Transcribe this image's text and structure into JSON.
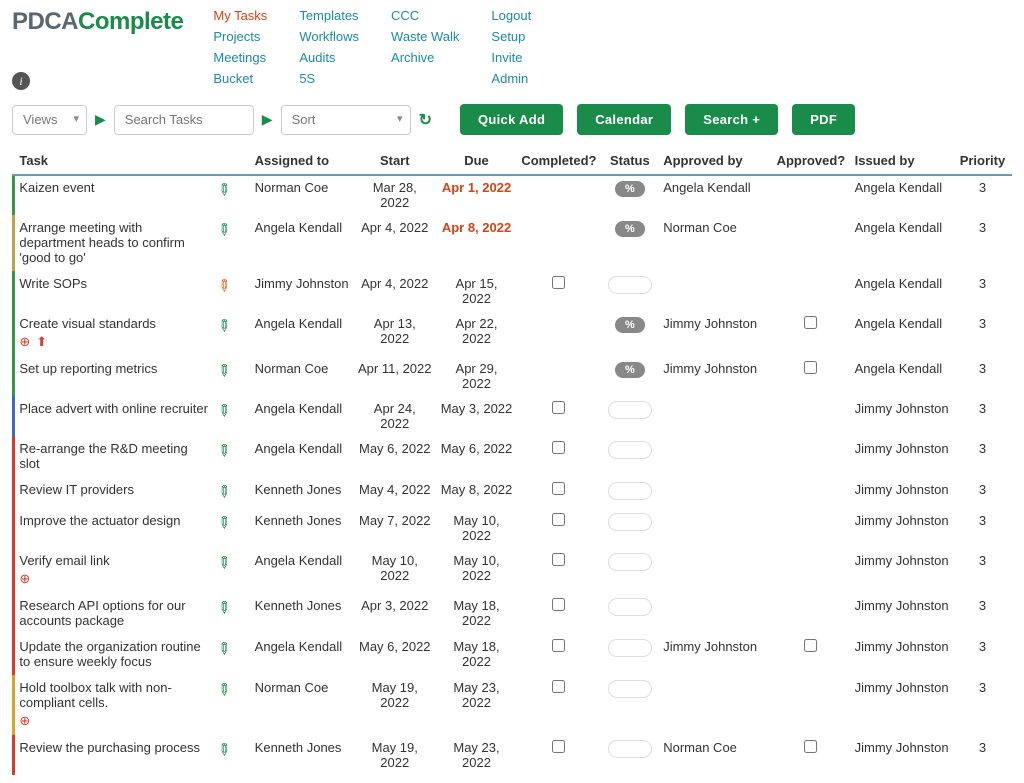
{
  "logo": {
    "pdca": "PDCA",
    "complete": "Complete"
  },
  "nav": {
    "col1": [
      "My Tasks",
      "Projects",
      "Meetings",
      "Bucket"
    ],
    "col2": [
      "Templates",
      "Workflows",
      "Audits",
      "5S"
    ],
    "col3": [
      "CCC",
      "Waste Walk",
      "Archive"
    ],
    "col4": [
      "Logout",
      "Setup",
      "Invite",
      "Admin"
    ]
  },
  "controls": {
    "views": "Views",
    "search_placeholder": "Search Tasks",
    "sort": "Sort",
    "quick_add": "Quick Add",
    "calendar": "Calendar",
    "search_btn": "Search +",
    "pdf": "PDF"
  },
  "columns": {
    "task": "Task",
    "assigned": "Assigned to",
    "start": "Start",
    "due": "Due",
    "completed": "Completed?",
    "status": "Status",
    "approved_by": "Approved by",
    "approved": "Approved?",
    "issued_by": "Issued by",
    "priority": "Priority"
  },
  "rows": [
    {
      "bar": "green",
      "task": "Kaizen event",
      "pencil": "green",
      "assigned": "Norman Coe",
      "start": "Mar 28, 2022",
      "due": "Apr 1, 2022",
      "due_red": true,
      "completed": "",
      "status": "pct",
      "approved_by": "Angela Kendall",
      "approved": "",
      "issued_by": "Angela Kendall",
      "priority": "3"
    },
    {
      "bar": "khaki",
      "task": "Arrange meeting with department heads to confirm 'good to go'",
      "pencil": "green",
      "assigned": "Angela Kendall",
      "start": "Apr 4, 2022",
      "due": "Apr 8, 2022",
      "due_red": true,
      "completed": "",
      "status": "pct",
      "approved_by": "Norman Coe",
      "approved": "",
      "issued_by": "Angela Kendall",
      "priority": "3"
    },
    {
      "bar": "green",
      "task": "Write SOPs",
      "pencil": "orange",
      "assigned": "Jimmy Johnston",
      "start": "Apr 4, 2022",
      "due": "Apr 15, 2022",
      "completed": "chk",
      "status": "input",
      "approved_by": "",
      "approved": "",
      "issued_by": "Angela Kendall",
      "priority": "3"
    },
    {
      "bar": "green",
      "task": "Create visual standards",
      "sub": [
        "target",
        "upload"
      ],
      "pencil": "green",
      "assigned": "Angela Kendall",
      "start": "Apr 13, 2022",
      "due": "Apr 22, 2022",
      "completed": "",
      "status": "pct",
      "approved_by": "Jimmy Johnston",
      "approved": "chk",
      "issued_by": "Angela Kendall",
      "priority": "3"
    },
    {
      "bar": "green",
      "task": "Set up reporting metrics",
      "pencil": "green",
      "assigned": "Norman Coe",
      "start": "Apr 11, 2022",
      "due": "Apr 29, 2022",
      "completed": "",
      "status": "pct",
      "approved_by": "Jimmy Johnston",
      "approved": "chk",
      "issued_by": "Angela Kendall",
      "priority": "3"
    },
    {
      "bar": "blue",
      "task": "Place advert with online recruiter",
      "pencil": "green",
      "assigned": "Angela Kendall",
      "start": "Apr 24, 2022",
      "due": "May 3, 2022",
      "completed": "chk",
      "status": "input",
      "approved_by": "",
      "approved": "",
      "issued_by": "Jimmy Johnston",
      "priority": "3"
    },
    {
      "bar": "red",
      "task": "Re-arrange the R&D meeting slot",
      "pencil": "green",
      "assigned": "Angela Kendall",
      "start": "May 6, 2022",
      "due": "May 6, 2022",
      "completed": "chk",
      "status": "input",
      "approved_by": "",
      "approved": "",
      "issued_by": "Jimmy Johnston",
      "priority": "3"
    },
    {
      "bar": "red",
      "task": "Review IT providers",
      "pencil": "green",
      "assigned": "Kenneth Jones",
      "start": "May 4, 2022",
      "due": "May 8, 2022",
      "completed": "chk",
      "status": "input",
      "approved_by": "",
      "approved": "",
      "issued_by": "Jimmy Johnston",
      "priority": "3"
    },
    {
      "bar": "red",
      "task": "Improve the actuator design",
      "pencil": "green",
      "assigned": "Kenneth Jones",
      "start": "May 7, 2022",
      "due": "May 10, 2022",
      "completed": "chk",
      "status": "input",
      "approved_by": "",
      "approved": "",
      "issued_by": "Jimmy Johnston",
      "priority": "3"
    },
    {
      "bar": "red",
      "task": "Verify email link",
      "sub": [
        "target"
      ],
      "pencil": "green",
      "assigned": "Angela Kendall",
      "start": "May 10, 2022",
      "due": "May 10, 2022",
      "completed": "chk",
      "status": "input",
      "approved_by": "",
      "approved": "",
      "issued_by": "Jimmy Johnston",
      "priority": "3"
    },
    {
      "bar": "red",
      "task": "Research API options for our accounts package",
      "pencil": "green",
      "assigned": "Kenneth Jones",
      "start": "Apr 3, 2022",
      "due": "May 18, 2022",
      "completed": "chk",
      "status": "input",
      "approved_by": "",
      "approved": "",
      "issued_by": "Jimmy Johnston",
      "priority": "3"
    },
    {
      "bar": "red",
      "task": "Update the organization routine to ensure weekly focus",
      "pencil": "green",
      "assigned": "Angela Kendall",
      "start": "May 6, 2022",
      "due": "May 18, 2022",
      "completed": "chk",
      "status": "input",
      "approved_by": "Jimmy Johnston",
      "approved": "chk",
      "issued_by": "Jimmy Johnston",
      "priority": "3"
    },
    {
      "bar": "gold",
      "task": "Hold toolbox talk with non-compliant cells.",
      "sub": [
        "target"
      ],
      "pencil": "green",
      "assigned": "Norman Coe",
      "start": "May 19, 2022",
      "due": "May 23, 2022",
      "completed": "chk",
      "status": "input",
      "approved_by": "",
      "approved": "",
      "issued_by": "Jimmy Johnston",
      "priority": "3"
    },
    {
      "bar": "red",
      "task": "Review the purchasing process",
      "pencil": "green",
      "assigned": "Kenneth Jones",
      "start": "May 19, 2022",
      "due": "May 23, 2022",
      "completed": "chk",
      "status": "input",
      "approved_by": "Norman Coe",
      "approved": "chk",
      "issued_by": "Jimmy Johnston",
      "priority": "3"
    }
  ]
}
